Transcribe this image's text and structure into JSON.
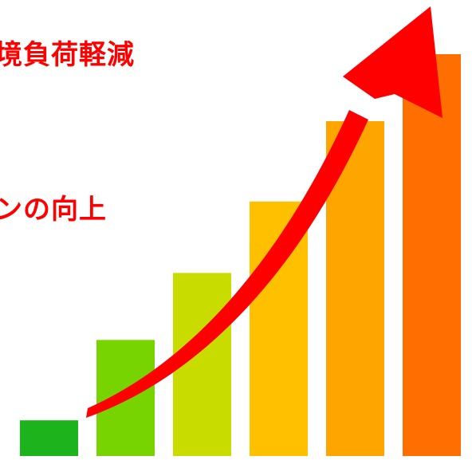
{
  "captions": {
    "top": "境負荷軽減",
    "middle": "ンの向上"
  },
  "bars": {
    "count": 6,
    "levels": [
      0.08,
      0.26,
      0.41,
      0.57,
      0.75,
      0.9
    ],
    "colors": [
      "#1db31d",
      "#77d400",
      "#c8dc00",
      "#ffc000",
      "#ffa500",
      "#ff6e00"
    ]
  },
  "arrow": {
    "icon": "rising-trend-arrow-icon",
    "color": "#ff0000"
  }
}
